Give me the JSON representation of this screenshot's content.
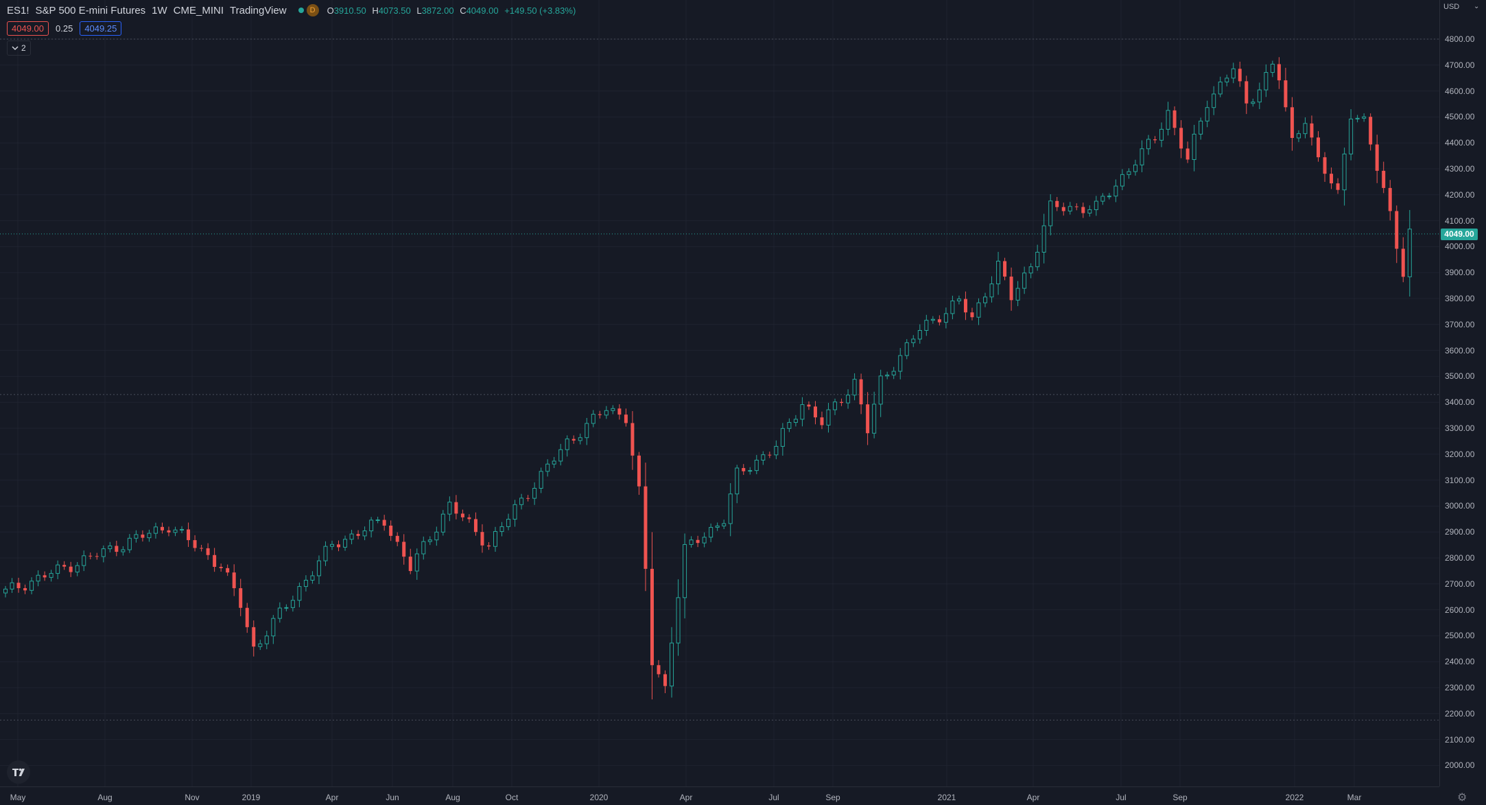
{
  "legend": {
    "symbol": "ES1!",
    "name": "S&P 500 E-mini Futures",
    "interval": "1W",
    "exchange": "CME_MINI",
    "source": "TradingView",
    "status_letter": "D",
    "open_key": "O",
    "open": "3910.50",
    "high_key": "H",
    "high": "4073.50",
    "low_key": "L",
    "low": "3872.00",
    "close_key": "C",
    "close": "4049.00",
    "change": "+149.50 (+3.83%)"
  },
  "trade": {
    "bid": "4049.00",
    "spread": "0.25",
    "ask": "4049.25"
  },
  "indicators_toggle": {
    "count": "2",
    "icon": "chevron-down-icon"
  },
  "price_axis": {
    "currency": "USD",
    "labels": [
      "4800.00",
      "4700.00",
      "4600.00",
      "4500.00",
      "4400.00",
      "4300.00",
      "4200.00",
      "4100.00",
      "4000.00",
      "3900.00",
      "3800.00",
      "3700.00",
      "3600.00",
      "3500.00",
      "3400.00",
      "3300.00",
      "3200.00",
      "3100.00",
      "3000.00",
      "2900.00",
      "2800.00",
      "2700.00",
      "2600.00",
      "2500.00",
      "2400.00",
      "2300.00",
      "2200.00",
      "2100.00",
      "2000.00"
    ],
    "last_price": "4049.00"
  },
  "time_axis": {
    "labels": [
      "May",
      "Aug",
      "Nov",
      "2019",
      "Apr",
      "Jun",
      "Aug",
      "Oct",
      "2020",
      "Apr",
      "Jul",
      "Sep",
      "2021",
      "Apr",
      "Jul",
      "Sep",
      "2022",
      "Mar"
    ]
  },
  "colors": {
    "background": "#161a25",
    "up": "#26a69a",
    "down": "#ef5350",
    "grid": "#1f2330"
  },
  "horizontal_lines": [
    4800,
    3430,
    2175
  ],
  "chart_data": {
    "type": "candlestick",
    "interval": "1W",
    "y_axis": {
      "min": 2000,
      "max": 4800,
      "unit": "USD"
    },
    "anchors": [
      {
        "week": 0,
        "price": 2670
      },
      {
        "week": 25,
        "price": 2925
      },
      {
        "week": 33,
        "price": 2770
      },
      {
        "week": 36,
        "price": 2620
      },
      {
        "week": 38,
        "price": 2450
      },
      {
        "week": 50,
        "price": 2850
      },
      {
        "week": 58,
        "price": 2945
      },
      {
        "week": 62,
        "price": 2760
      },
      {
        "week": 68,
        "price": 3005
      },
      {
        "week": 74,
        "price": 2850
      },
      {
        "week": 78,
        "price": 2990
      },
      {
        "week": 86,
        "price": 3245
      },
      {
        "week": 92,
        "price": 3375
      },
      {
        "week": 95,
        "price": 3345
      },
      {
        "week": 97,
        "price": 3050
      },
      {
        "week": 98,
        "price": 2750
      },
      {
        "week": 99,
        "price": 2400
      },
      {
        "week": 101,
        "price": 2300
      },
      {
        "week": 102,
        "price": 2490
      },
      {
        "week": 104,
        "price": 2830
      },
      {
        "week": 110,
        "price": 2950
      },
      {
        "week": 112,
        "price": 3120
      },
      {
        "week": 118,
        "price": 3230
      },
      {
        "week": 122,
        "price": 3400
      },
      {
        "week": 125,
        "price": 3320
      },
      {
        "week": 130,
        "price": 3480
      },
      {
        "week": 132,
        "price": 3290
      },
      {
        "week": 134,
        "price": 3480
      },
      {
        "week": 140,
        "price": 3680
      },
      {
        "week": 146,
        "price": 3790
      },
      {
        "week": 148,
        "price": 3720
      },
      {
        "week": 152,
        "price": 3930
      },
      {
        "week": 154,
        "price": 3800
      },
      {
        "week": 157,
        "price": 3930
      },
      {
        "week": 160,
        "price": 4150
      },
      {
        "week": 167,
        "price": 4150
      },
      {
        "week": 176,
        "price": 4420
      },
      {
        "week": 178,
        "price": 4520
      },
      {
        "week": 181,
        "price": 4330
      },
      {
        "week": 184,
        "price": 4560
      },
      {
        "week": 188,
        "price": 4690
      },
      {
        "week": 190,
        "price": 4540
      },
      {
        "week": 194,
        "price": 4700
      },
      {
        "week": 195,
        "price": 4650
      },
      {
        "week": 197,
        "price": 4400
      },
      {
        "week": 199,
        "price": 4500
      },
      {
        "week": 201,
        "price": 4330
      },
      {
        "week": 204,
        "price": 4200
      },
      {
        "week": 206,
        "price": 4520
      },
      {
        "week": 208,
        "price": 4480
      },
      {
        "week": 210,
        "price": 4300
      },
      {
        "week": 212,
        "price": 4130
      },
      {
        "week": 214,
        "price": 3900
      },
      {
        "week": 215,
        "price": 4049
      }
    ]
  }
}
